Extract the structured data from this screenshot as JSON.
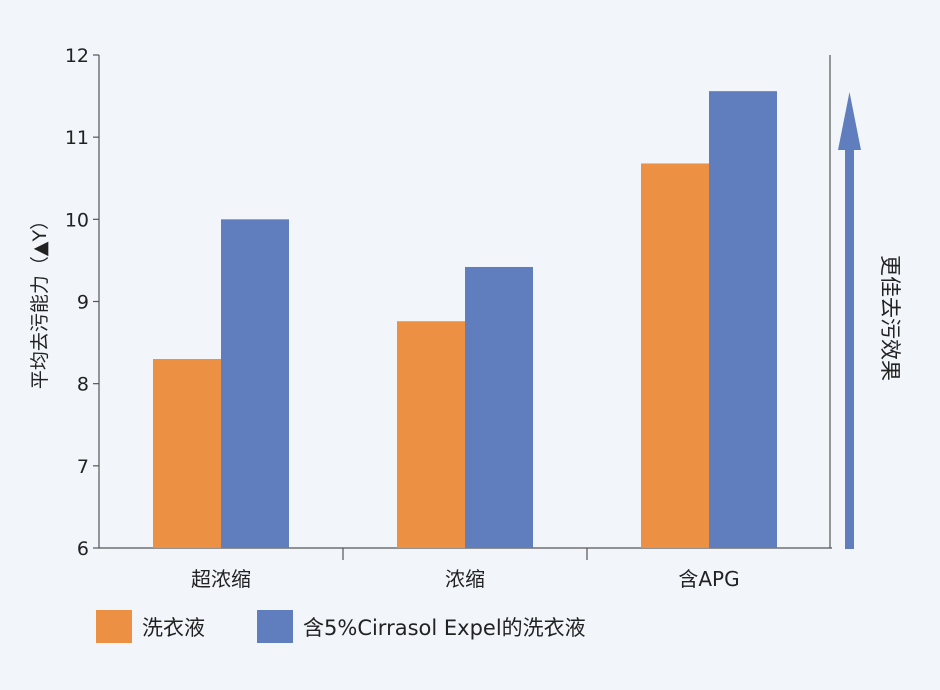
{
  "chart_data": {
    "type": "bar",
    "ylabel": "平均去污能力（▲Y）",
    "ylim": [
      6,
      12
    ],
    "yticks": [
      6,
      7,
      8,
      9,
      10,
      11,
      12
    ],
    "categories": [
      "超浓缩",
      "浓缩",
      "含APG"
    ],
    "series": [
      {
        "name": "洗衣液",
        "values": [
          8.3,
          8.76,
          10.68
        ],
        "color": "#ec9043"
      },
      {
        "name": "含5%Cirrasol Expel的洗衣液",
        "values": [
          10.0,
          9.42,
          11.56
        ],
        "color": "#607ebd"
      }
    ],
    "grid": false,
    "legend_position": "bottom-left",
    "annotation": {
      "text": "更佳去污效果",
      "arrow_color": "#607ebd"
    }
  }
}
